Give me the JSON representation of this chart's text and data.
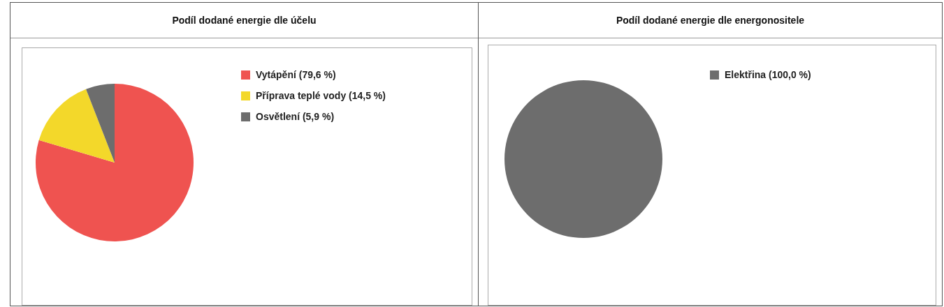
{
  "chart_data": [
    {
      "type": "pie",
      "title": "Podíl dodané energie dle účelu",
      "categories": [
        "Vytápění (79,6 %)",
        "Příprava teplé vody (14,5 %)",
        "Osvětlení (5,9 %)"
      ],
      "values": [
        79.6,
        14.5,
        5.9
      ],
      "colors": [
        "#ef5350",
        "#f3d82a",
        "#6d6d6d"
      ],
      "legend": "right"
    },
    {
      "type": "pie",
      "title": "Podíl dodané energie dle energonositele",
      "categories": [
        "Elektřina (100,0 %)"
      ],
      "values": [
        100.0
      ],
      "colors": [
        "#6d6d6d"
      ],
      "legend": "right"
    }
  ]
}
